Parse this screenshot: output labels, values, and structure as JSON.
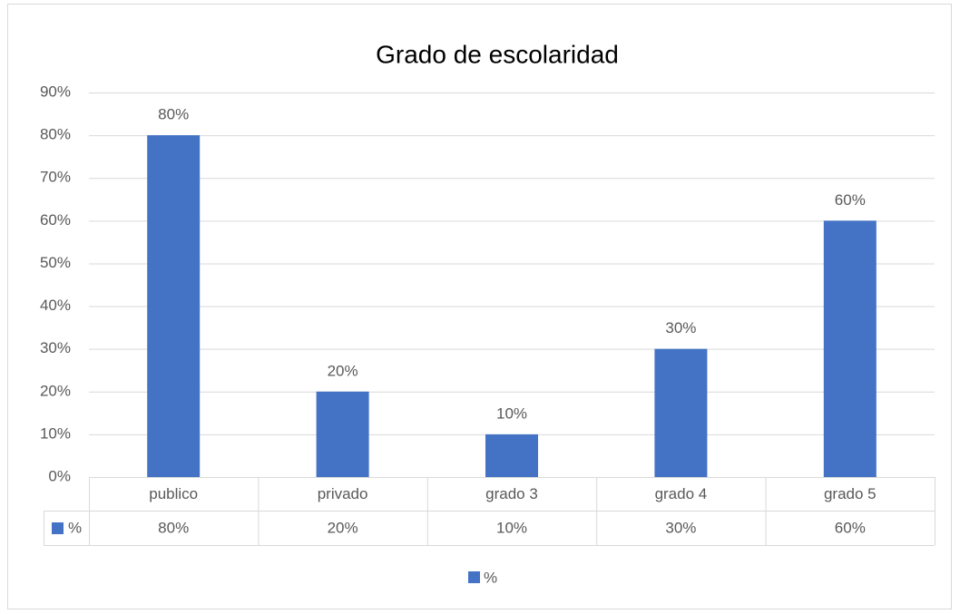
{
  "chart_data": {
    "type": "bar",
    "title": "Grado de escolaridad",
    "categories": [
      "publico",
      "privado",
      "grado 3",
      "grado 4",
      "grado 5"
    ],
    "series": [
      {
        "name": "%",
        "color": "#4472c4",
        "values": [
          80,
          20,
          10,
          30,
          60
        ],
        "value_labels": [
          "80%",
          "20%",
          "10%",
          "30%",
          "60%"
        ]
      }
    ],
    "ylim": [
      0,
      90
    ],
    "yticks": [
      {
        "value": 0,
        "label": "0%"
      },
      {
        "value": 10,
        "label": "10%"
      },
      {
        "value": 20,
        "label": "20%"
      },
      {
        "value": 30,
        "label": "30%"
      },
      {
        "value": 40,
        "label": "40%"
      },
      {
        "value": 50,
        "label": "50%"
      },
      {
        "value": 60,
        "label": "60%"
      },
      {
        "value": 70,
        "label": "70%"
      },
      {
        "value": 80,
        "label": "80%"
      },
      {
        "value": 90,
        "label": "90%"
      }
    ],
    "grid": true,
    "legend": "bottom",
    "data_table": true
  }
}
